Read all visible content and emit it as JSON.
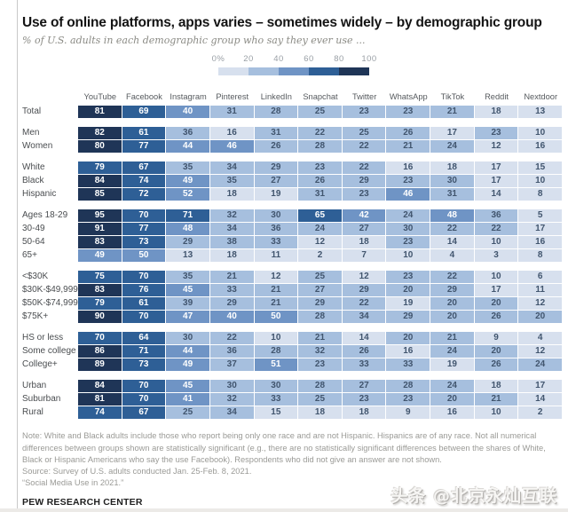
{
  "title": "Use of online platforms, apps varies – sometimes widely – by demographic group",
  "subtitle": "% of U.S. adults in each demographic group who say they ever use ...",
  "legend": {
    "tick_labels": [
      "0%",
      "20",
      "40",
      "60",
      "80",
      "100"
    ],
    "bucket_colors": [
      "#d7e0ee",
      "#a6bfde",
      "#6f94c5",
      "#2e5f96",
      "#1f3557"
    ]
  },
  "cell_text_colors": {
    "light": "#41556e",
    "dark": "#ffffff"
  },
  "notes": {
    "note": "Note: White and Black adults include those who report being only one race and are not Hispanic. Hispanics are of any race. Not all numerical differences between groups shown are statistically significant (e.g., there are no statistically significant differences between the shares of White, Black or Hispanic Americans who say the use Facebook). Respondents who did not give an answer are not shown.",
    "source": "Source: Survey of U.S. adults conducted Jan. 25-Feb. 8, 2021.",
    "report": "“Social Media Use in 2021.”",
    "org": "PEW RESEARCH CENTER"
  },
  "watermark": "头条 @北京永灿互联",
  "chart_data": {
    "type": "heatmap",
    "title": "Use of online platforms, apps varies – sometimes widely – by demographic group",
    "subtitle": "% of U.S. adults in each demographic group who say they ever use ...",
    "value_unit": "% of U.S. adults",
    "color_scale": {
      "range": [
        0,
        100
      ],
      "bucket_edges": [
        0,
        20,
        40,
        60,
        80,
        100
      ],
      "legend_position": "top-center"
    },
    "columns": [
      "YouTube",
      "Facebook",
      "Instagram",
      "Pinterest",
      "LinkedIn",
      "Snapchat",
      "Twitter",
      "WhatsApp",
      "TikTok",
      "Reddit",
      "Nextdoor"
    ],
    "sections": [
      {
        "rows": [
          {
            "label": "Total",
            "values": [
              81,
              69,
              40,
              31,
              28,
              25,
              23,
              23,
              21,
              18,
              13
            ]
          }
        ]
      },
      {
        "rows": [
          {
            "label": "Men",
            "values": [
              82,
              61,
              36,
              16,
              31,
              22,
              25,
              26,
              17,
              23,
              10
            ]
          },
          {
            "label": "Women",
            "values": [
              80,
              77,
              44,
              46,
              26,
              28,
              22,
              21,
              24,
              12,
              16
            ]
          }
        ]
      },
      {
        "rows": [
          {
            "label": "White",
            "values": [
              79,
              67,
              35,
              34,
              29,
              23,
              22,
              16,
              18,
              17,
              15
            ]
          },
          {
            "label": "Black",
            "values": [
              84,
              74,
              49,
              35,
              27,
              26,
              29,
              23,
              30,
              17,
              10
            ]
          },
          {
            "label": "Hispanic",
            "values": [
              85,
              72,
              52,
              18,
              19,
              31,
              23,
              46,
              31,
              14,
              8
            ]
          }
        ]
      },
      {
        "rows": [
          {
            "label": "Ages 18-29",
            "values": [
              95,
              70,
              71,
              32,
              30,
              65,
              42,
              24,
              48,
              36,
              5
            ]
          },
          {
            "label": "30-49",
            "values": [
              91,
              77,
              48,
              34,
              36,
              24,
              27,
              30,
              22,
              22,
              17
            ]
          },
          {
            "label": "50-64",
            "values": [
              83,
              73,
              29,
              38,
              33,
              12,
              18,
              23,
              14,
              10,
              16
            ]
          },
          {
            "label": "65+",
            "values": [
              49,
              50,
              13,
              18,
              11,
              2,
              7,
              10,
              4,
              3,
              8
            ]
          }
        ]
      },
      {
        "rows": [
          {
            "label": "<$30K",
            "values": [
              75,
              70,
              35,
              21,
              12,
              25,
              12,
              23,
              22,
              10,
              6
            ]
          },
          {
            "label": "$30K-$49,999",
            "values": [
              83,
              76,
              45,
              33,
              21,
              27,
              29,
              20,
              29,
              17,
              11
            ]
          },
          {
            "label": "$50K-$74,999",
            "values": [
              79,
              61,
              39,
              29,
              21,
              29,
              22,
              19,
              20,
              20,
              12
            ]
          },
          {
            "label": "$75K+",
            "values": [
              90,
              70,
              47,
              40,
              50,
              28,
              34,
              29,
              20,
              26,
              20
            ]
          }
        ]
      },
      {
        "rows": [
          {
            "label": "HS or less",
            "values": [
              70,
              64,
              30,
              22,
              10,
              21,
              14,
              20,
              21,
              9,
              4
            ]
          },
          {
            "label": "Some college",
            "values": [
              86,
              71,
              44,
              36,
              28,
              32,
              26,
              16,
              24,
              20,
              12
            ]
          },
          {
            "label": "College+",
            "values": [
              89,
              73,
              49,
              37,
              51,
              23,
              33,
              33,
              19,
              26,
              24
            ]
          }
        ]
      },
      {
        "rows": [
          {
            "label": "Urban",
            "values": [
              84,
              70,
              45,
              30,
              30,
              28,
              27,
              28,
              24,
              18,
              17
            ]
          },
          {
            "label": "Suburban",
            "values": [
              81,
              70,
              41,
              32,
              33,
              25,
              23,
              23,
              20,
              21,
              14
            ]
          },
          {
            "label": "Rural",
            "values": [
              74,
              67,
              25,
              34,
              15,
              18,
              18,
              9,
              16,
              10,
              2
            ]
          }
        ]
      }
    ]
  }
}
